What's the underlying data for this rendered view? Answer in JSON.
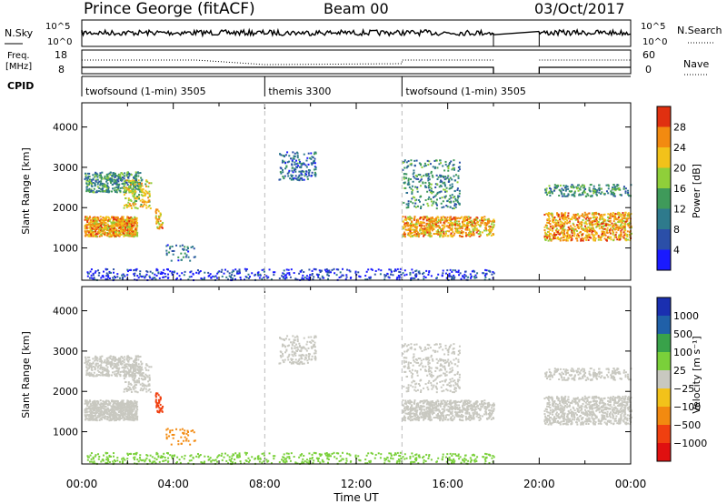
{
  "header": {
    "title": "Prince George (fitACF)",
    "beam": "Beam 00",
    "date": "03/Oct/2017"
  },
  "top_panels": {
    "nsky_label": "N.Sky",
    "nsky_ticks": [
      "10^5",
      "10^0"
    ],
    "right_ticks_nsky": [
      "10^5",
      "10^0"
    ],
    "nsearch_label": "N.Search",
    "freq_label": "Freq.",
    "freq_unit": "[MHz]",
    "freq_ticks": [
      "18",
      "8"
    ],
    "nave_ticks": [
      "60",
      "0"
    ],
    "nave_label": "Nave",
    "cpid_label": "CPID"
  },
  "cpid_segments": [
    {
      "label": "twofsound (1-min) 3505",
      "start_hr": 0
    },
    {
      "label": "themis 3300",
      "start_hr": 8
    },
    {
      "label": "twofsound (1-min) 3505",
      "start_hr": 14
    }
  ],
  "chart_data": [
    {
      "type": "heatmap",
      "panel": "power",
      "xlabel": "",
      "ylabel": "Slant Range [km]",
      "xlim": [
        0,
        24
      ],
      "ylim": [
        200,
        4600
      ],
      "yticks": [
        "1000",
        "2000",
        "3000",
        "4000"
      ],
      "colorbar_label": "Power [dB]",
      "colorbar_ticks": [
        "4",
        "8",
        "12",
        "16",
        "20",
        "24",
        "28"
      ],
      "data_gap_hr": [
        18,
        20
      ]
    },
    {
      "type": "heatmap",
      "panel": "velocity",
      "xlabel": "Time UT",
      "ylabel": "Slant Range [km]",
      "xlim": [
        0,
        24
      ],
      "ylim": [
        200,
        4600
      ],
      "yticks": [
        "1000",
        "2000",
        "3000",
        "4000"
      ],
      "xticks": [
        "00:00",
        "04:00",
        "08:00",
        "12:00",
        "16:00",
        "20:00",
        "00:00"
      ],
      "colorbar_label": "Velocity [m s⁻¹]",
      "colorbar_ticks": [
        "1000",
        "500",
        "100",
        "25",
        "−25",
        "−100",
        "−500",
        "−1000"
      ],
      "data_gap_hr": [
        18,
        20
      ]
    }
  ],
  "colors": {
    "power_scale": [
      "#1a1aff",
      "#2b4fa8",
      "#2e7a8c",
      "#3f9a5a",
      "#8fcf3a",
      "#f2c21a",
      "#f28a10",
      "#e03010"
    ],
    "velocity_scale": [
      "#1a2fb0",
      "#2060a8",
      "#39a24a",
      "#7ad03a",
      "#c8c8c0",
      "#f2c21a",
      "#f28a10",
      "#f04010",
      "#e01010"
    ]
  }
}
